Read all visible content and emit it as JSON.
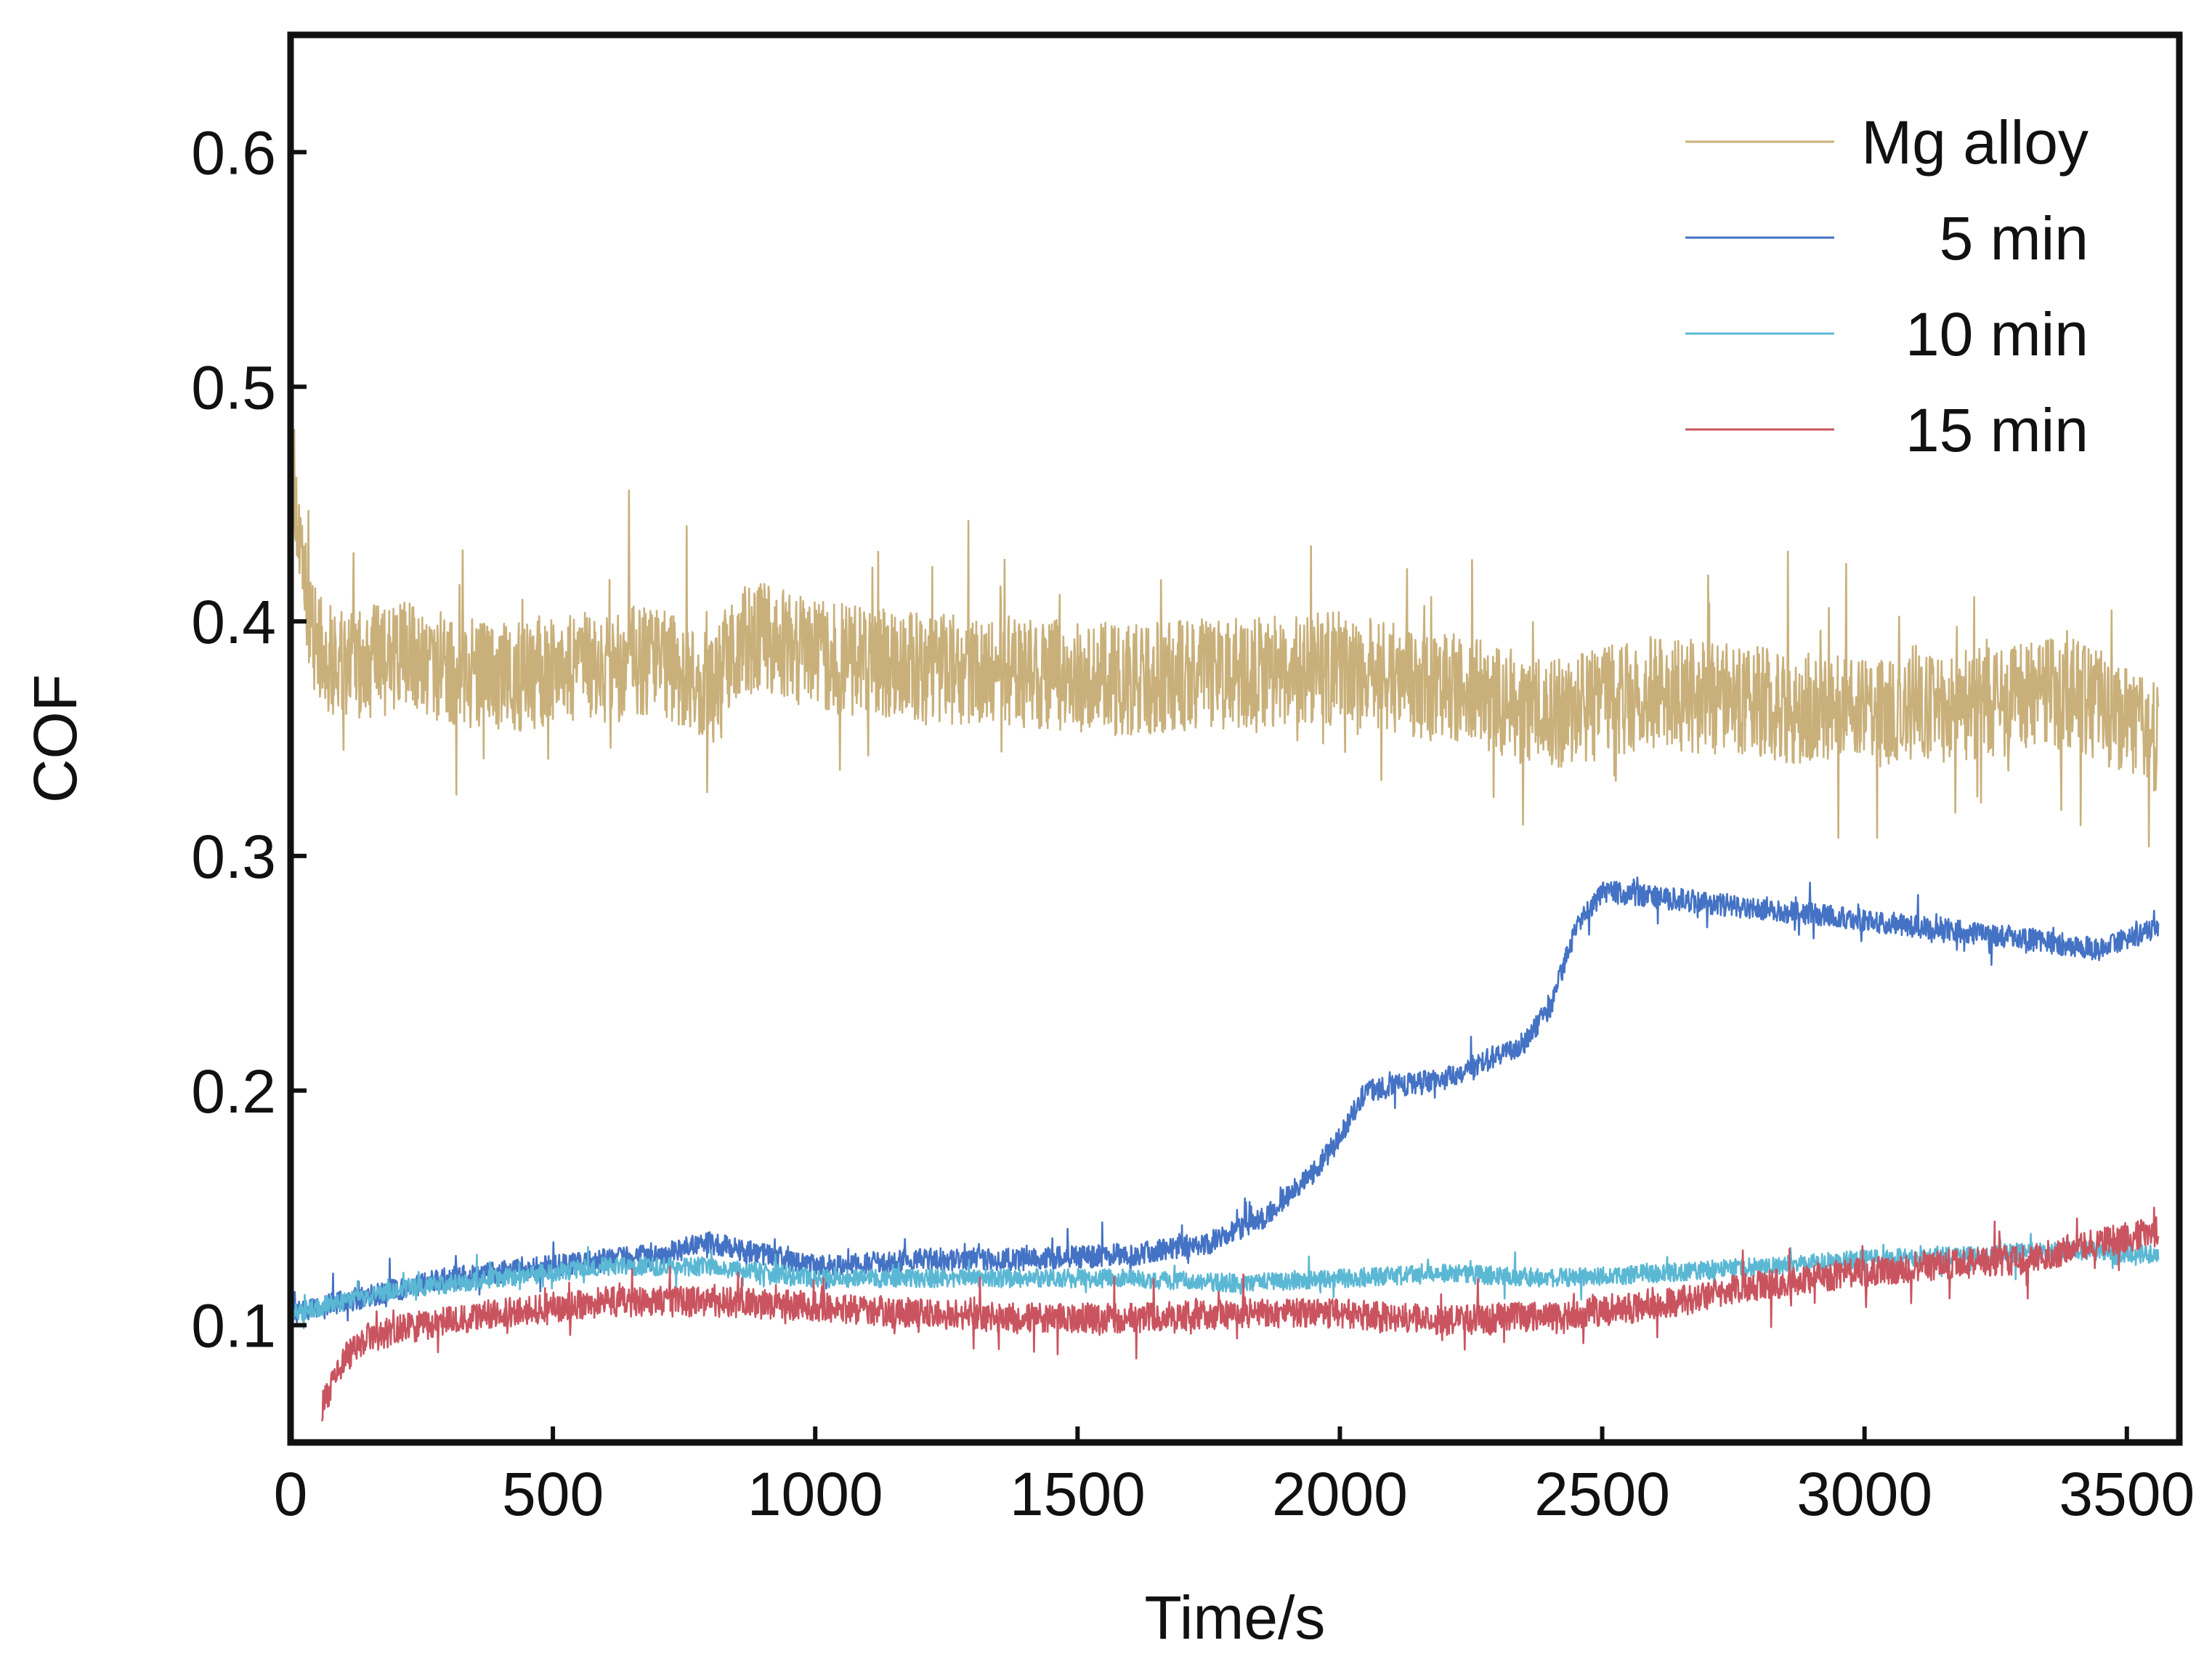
{
  "chart_data": {
    "type": "line",
    "title": "",
    "xlabel": "Time/s",
    "ylabel": "COF",
    "xlim": [
      0,
      3600
    ],
    "ylim": [
      0.05,
      0.65
    ],
    "x_ticks": [
      0,
      500,
      1000,
      1500,
      2000,
      2500,
      3000,
      3500
    ],
    "x_tick_labels": [
      "0",
      "500",
      "1000",
      "1500",
      "2000",
      "2500",
      "3000",
      "3500"
    ],
    "y_ticks": [
      0.1,
      0.2,
      0.3,
      0.4,
      0.5,
      0.6
    ],
    "y_tick_labels": [
      "0.1",
      "0.2",
      "0.3",
      "0.4",
      "0.5",
      "0.6"
    ],
    "grid": false,
    "legend_position": "top-right",
    "series": [
      {
        "name": "Mg alloy",
        "color": "#c9b07a",
        "noise_amplitude": 0.03,
        "x": [
          0,
          20,
          50,
          100,
          200,
          300,
          400,
          500,
          600,
          700,
          800,
          850,
          900,
          1000,
          1200,
          1400,
          1600,
          1800,
          2000,
          2200,
          2400,
          2600,
          2800,
          3000,
          3200,
          3400,
          3560
        ],
        "y": [
          0.48,
          0.42,
          0.39,
          0.38,
          0.385,
          0.38,
          0.375,
          0.38,
          0.38,
          0.385,
          0.37,
          0.39,
          0.395,
          0.385,
          0.38,
          0.378,
          0.375,
          0.378,
          0.38,
          0.372,
          0.36,
          0.37,
          0.365,
          0.36,
          0.365,
          0.37,
          0.35
        ]
      },
      {
        "name": "5 min",
        "color": "#4472c4",
        "noise_amplitude": 0.006,
        "x": [
          0,
          100,
          300,
          500,
          700,
          800,
          1000,
          1200,
          1400,
          1600,
          1750,
          1850,
          1950,
          2000,
          2050,
          2200,
          2350,
          2400,
          2450,
          2500,
          2700,
          2900,
          3100,
          3300,
          3450,
          3560
        ],
        "y": [
          0.105,
          0.11,
          0.12,
          0.125,
          0.13,
          0.135,
          0.125,
          0.128,
          0.128,
          0.13,
          0.135,
          0.145,
          0.165,
          0.18,
          0.2,
          0.205,
          0.22,
          0.235,
          0.27,
          0.285,
          0.28,
          0.275,
          0.27,
          0.265,
          0.26,
          0.27
        ]
      },
      {
        "name": "10 min",
        "color": "#5bb8d4",
        "noise_amplitude": 0.005,
        "x": [
          0,
          100,
          200,
          400,
          600,
          800,
          1000,
          1200,
          1400,
          1600,
          1800,
          2000,
          2200,
          2400,
          2600,
          2800,
          3000,
          3200,
          3400,
          3560
        ],
        "y": [
          0.105,
          0.11,
          0.115,
          0.12,
          0.125,
          0.125,
          0.12,
          0.12,
          0.12,
          0.12,
          0.118,
          0.12,
          0.122,
          0.12,
          0.122,
          0.125,
          0.128,
          0.13,
          0.132,
          0.13
        ]
      },
      {
        "name": "15 min",
        "color": "#c9545f",
        "noise_amplitude": 0.008,
        "x": [
          60,
          80,
          100,
          150,
          250,
          400,
          600,
          800,
          1000,
          1200,
          1400,
          1600,
          1800,
          2000,
          2200,
          2400,
          2600,
          2750,
          2900,
          3100,
          3300,
          3450,
          3560
        ],
        "y": [
          0.065,
          0.075,
          0.085,
          0.095,
          0.1,
          0.105,
          0.11,
          0.11,
          0.108,
          0.105,
          0.103,
          0.103,
          0.105,
          0.105,
          0.102,
          0.104,
          0.108,
          0.115,
          0.12,
          0.125,
          0.128,
          0.135,
          0.14
        ]
      }
    ]
  }
}
